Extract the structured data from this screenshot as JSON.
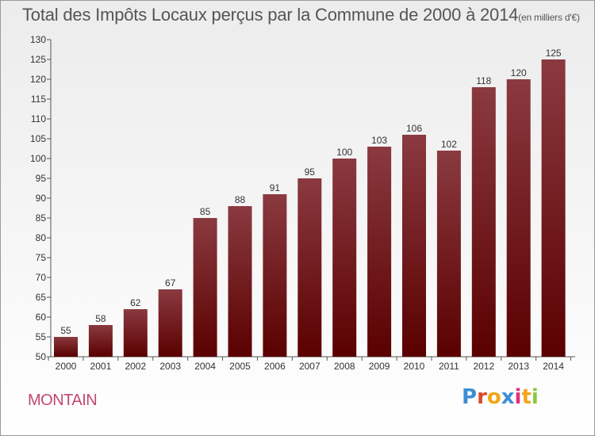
{
  "title": {
    "main": "Total des Impôts Locaux perçus par la Commune de 2000 à 2014",
    "unit": "(en milliers d'€)"
  },
  "commune": "MONTAIN",
  "logo": {
    "text": "Proxiti",
    "letters": [
      "P",
      "r",
      "o",
      "x",
      "i",
      "t",
      "i"
    ],
    "colors": [
      "#3b8fd6",
      "#d94a2b",
      "#f2a51b",
      "#3b8fd6",
      "#e0327c",
      "#f2a51b",
      "#8cc63f"
    ]
  },
  "colors": {
    "bar_top": "#8a3a40",
    "bar_bottom": "#5a0000",
    "commune": "#c2486e"
  },
  "chart_data": {
    "type": "bar",
    "title": "Total des Impôts Locaux perçus par la Commune de 2000 à 2014",
    "xlabel": "",
    "ylabel": "",
    "ylim": [
      50,
      130
    ],
    "ytick_step": 5,
    "categories": [
      "2000",
      "2001",
      "2002",
      "2003",
      "2004",
      "2005",
      "2006",
      "2007",
      "2008",
      "2009",
      "2010",
      "2011",
      "2012",
      "2013",
      "2014"
    ],
    "values": [
      55,
      58,
      62,
      67,
      85,
      88,
      91,
      95,
      100,
      103,
      106,
      102,
      118,
      120,
      125
    ],
    "grid": false
  }
}
